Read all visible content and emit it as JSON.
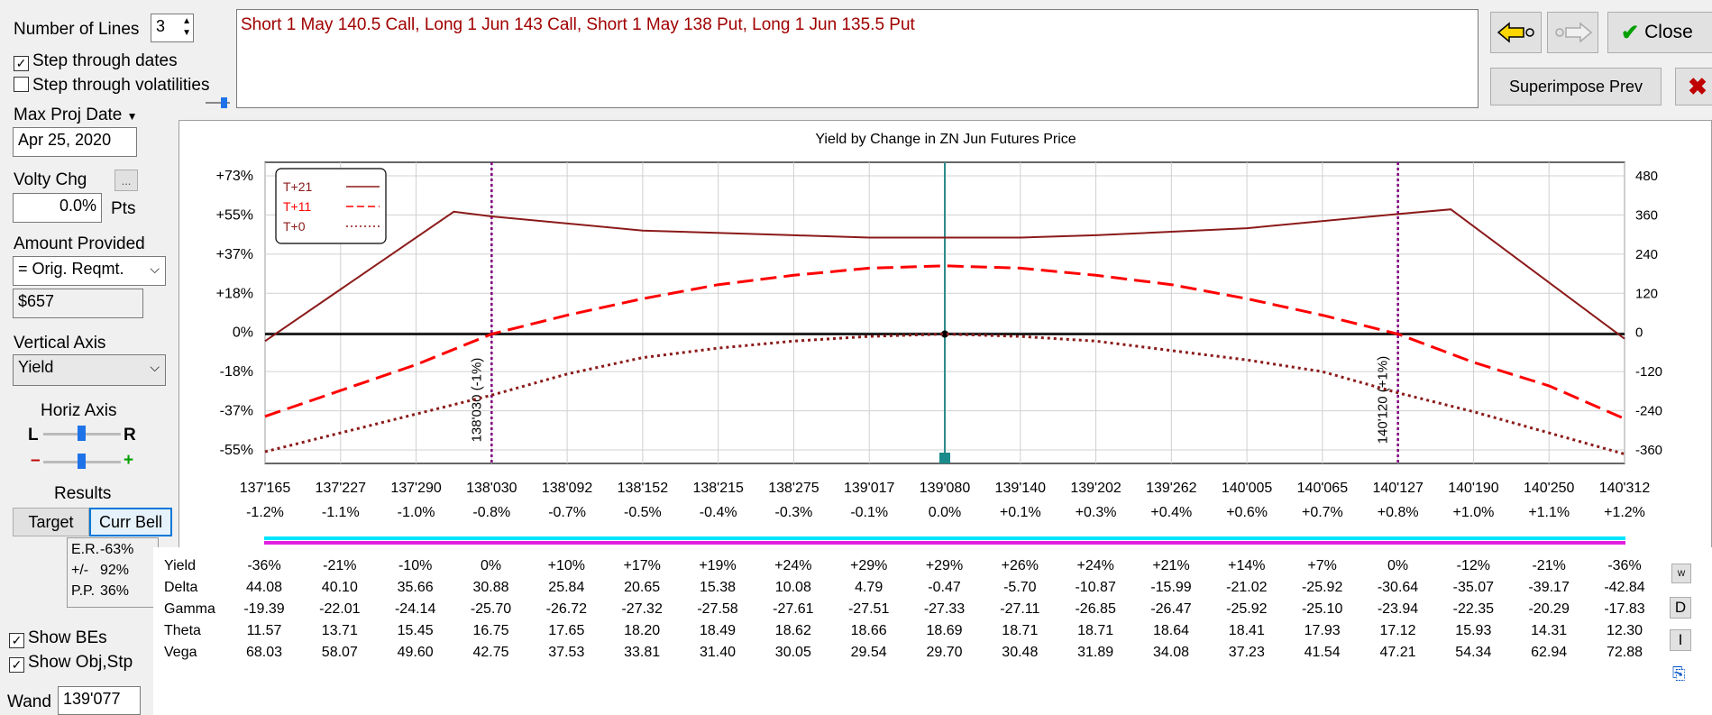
{
  "controls": {
    "num_lines_label": "Number of Lines",
    "num_lines_value": "3",
    "step_dates_label": "Step through dates",
    "step_dates_checked": true,
    "step_vol_label": "Step through volatilities",
    "step_vol_checked": false,
    "max_proj_date_label": "Max Proj Date",
    "max_proj_date_value": "Apr 25, 2020",
    "volty_chg_label": "Volty Chg",
    "volty_ellipsis": "...",
    "volty_value": "0.0%",
    "volty_unit": "Pts",
    "amount_label": "Amount Provided",
    "amount_select": "= Orig. Reqmt.",
    "amount_value": "$657",
    "vertical_axis_label": "Vertical Axis",
    "vertical_axis_value": "Yield",
    "horiz_axis_label": "Horiz Axis",
    "horiz_l": "L",
    "horiz_r": "R",
    "minus": "–",
    "plus": "+",
    "results_label": "Results",
    "target_btn": "Target",
    "curr_bell_btn": "Curr Bell",
    "er_label": "E.R.",
    "er_value": "-63%",
    "pm_label": "+/-",
    "pm_value": "92%",
    "pp_label": "P.P.",
    "pp_value": "36%",
    "show_bes_label": "Show BEs",
    "show_bes_checked": true,
    "show_obj_label": "Show Obj,Stp",
    "show_obj_checked": true,
    "wand_label": "Wand",
    "wand_value": "139'077"
  },
  "strategy_text": "Short 1 May 140.5 Call, Long 1 Jun 143 Call, Short 1 May 138 Put, Long 1 Jun 135.5 Put",
  "buttons": {
    "close": "Close",
    "superimpose": "Superimpose Prev"
  },
  "side_buttons": [
    "W",
    "D",
    "I"
  ],
  "colors": {
    "t21": "#8b1a1a",
    "t11": "#ff0000",
    "t0": "#8b1a1a",
    "be_line": "#800080",
    "wand_line": "#2e8b8b",
    "strategy_text": "#a00000",
    "bar_cyan": "#00e5ff",
    "bar_magenta": "#e020e0"
  },
  "chart_data": {
    "type": "line",
    "title": "Yield by Change in ZN Jun Futures Price",
    "x_ticks": [
      "137'165",
      "137'227",
      "137'290",
      "138'030",
      "138'092",
      "138'152",
      "138'215",
      "138'275",
      "139'017",
      "139'080",
      "139'140",
      "139'202",
      "139'262",
      "140'005",
      "140'065",
      "140'127",
      "140'190",
      "140'250",
      "140'312"
    ],
    "x_pct_ticks": [
      "-1.2%",
      "-1.1%",
      "-1.0%",
      "-0.8%",
      "-0.7%",
      "-0.5%",
      "-0.4%",
      "-0.3%",
      "-0.1%",
      "0.0%",
      "+0.1%",
      "+0.3%",
      "+0.4%",
      "+0.6%",
      "+0.7%",
      "+0.8%",
      "+1.0%",
      "+1.1%",
      "+1.2%"
    ],
    "y_left_ticks": [
      "+73%",
      "+55%",
      "+37%",
      "+18%",
      "0%",
      "-18%",
      "-37%",
      "-55%"
    ],
    "y_right_ticks": [
      "480",
      "360",
      "240",
      "120",
      "0",
      "-120",
      "-240",
      "-360"
    ],
    "ylim": [
      -55,
      73
    ],
    "be_labels": [
      "138'030 (-1%)",
      "140'120 (+1%)"
    ],
    "be_x_index": [
      3.0,
      15.0
    ],
    "wand_x_index": 9,
    "series": [
      {
        "name": "T+21",
        "style": "solid",
        "points": [
          [
            0,
            -3
          ],
          [
            2.5,
            52
          ],
          [
            3,
            50
          ],
          [
            5,
            44
          ],
          [
            7,
            42
          ],
          [
            8,
            41
          ],
          [
            9,
            41
          ],
          [
            10,
            41
          ],
          [
            11,
            42
          ],
          [
            13,
            45
          ],
          [
            15,
            51
          ],
          [
            15.7,
            53
          ],
          [
            18,
            -2
          ]
        ]
      },
      {
        "name": "T+11",
        "style": "dash",
        "points": [
          [
            0,
            -35
          ],
          [
            1,
            -24
          ],
          [
            2,
            -13
          ],
          [
            3,
            0
          ],
          [
            4,
            8
          ],
          [
            5,
            15
          ],
          [
            6,
            21
          ],
          [
            7,
            25
          ],
          [
            8,
            28
          ],
          [
            9,
            29
          ],
          [
            10,
            28
          ],
          [
            11,
            25
          ],
          [
            12,
            21
          ],
          [
            13,
            15
          ],
          [
            14,
            8
          ],
          [
            15,
            0
          ],
          [
            16,
            -12
          ],
          [
            17,
            -22
          ],
          [
            18,
            -36
          ]
        ]
      },
      {
        "name": "T+0",
        "style": "dot",
        "points": [
          [
            0,
            -50
          ],
          [
            1,
            -42
          ],
          [
            2,
            -34
          ],
          [
            3,
            -26
          ],
          [
            4,
            -17
          ],
          [
            5,
            -10
          ],
          [
            6,
            -6
          ],
          [
            7,
            -3
          ],
          [
            8,
            -1
          ],
          [
            9,
            0
          ],
          [
            10,
            -1
          ],
          [
            11,
            -3
          ],
          [
            12,
            -7
          ],
          [
            13,
            -11
          ],
          [
            14,
            -16
          ],
          [
            15,
            -25
          ],
          [
            16,
            -33
          ],
          [
            17,
            -42
          ],
          [
            18,
            -51
          ]
        ]
      }
    ]
  },
  "table": {
    "rows": [
      {
        "label": "Yield",
        "values": [
          "-36%",
          "-21%",
          "-10%",
          "0%",
          "+10%",
          "+17%",
          "+19%",
          "+24%",
          "+29%",
          "+29%",
          "+26%",
          "+24%",
          "+21%",
          "+14%",
          "+7%",
          "0%",
          "-12%",
          "-21%",
          "-36%"
        ]
      },
      {
        "label": "Delta",
        "values": [
          "44.08",
          "40.10",
          "35.66",
          "30.88",
          "25.84",
          "20.65",
          "15.38",
          "10.08",
          "4.79",
          "-0.47",
          "-5.70",
          "-10.87",
          "-15.99",
          "-21.02",
          "-25.92",
          "-30.64",
          "-35.07",
          "-39.17",
          "-42.84"
        ]
      },
      {
        "label": "Gamma",
        "values": [
          "-19.39",
          "-22.01",
          "-24.14",
          "-25.70",
          "-26.72",
          "-27.32",
          "-27.58",
          "-27.61",
          "-27.51",
          "-27.33",
          "-27.11",
          "-26.85",
          "-26.47",
          "-25.92",
          "-25.10",
          "-23.94",
          "-22.35",
          "-20.29",
          "-17.83"
        ]
      },
      {
        "label": "Theta",
        "values": [
          "11.57",
          "13.71",
          "15.45",
          "16.75",
          "17.65",
          "18.20",
          "18.49",
          "18.62",
          "18.66",
          "18.69",
          "18.71",
          "18.71",
          "18.64",
          "18.41",
          "17.93",
          "17.12",
          "15.93",
          "14.31",
          "12.30"
        ]
      },
      {
        "label": "Vega",
        "values": [
          "68.03",
          "58.07",
          "49.60",
          "42.75",
          "37.53",
          "33.81",
          "31.40",
          "30.05",
          "29.54",
          "29.70",
          "30.48",
          "31.89",
          "34.08",
          "37.23",
          "41.54",
          "47.21",
          "54.34",
          "62.94",
          "72.88"
        ]
      }
    ]
  }
}
